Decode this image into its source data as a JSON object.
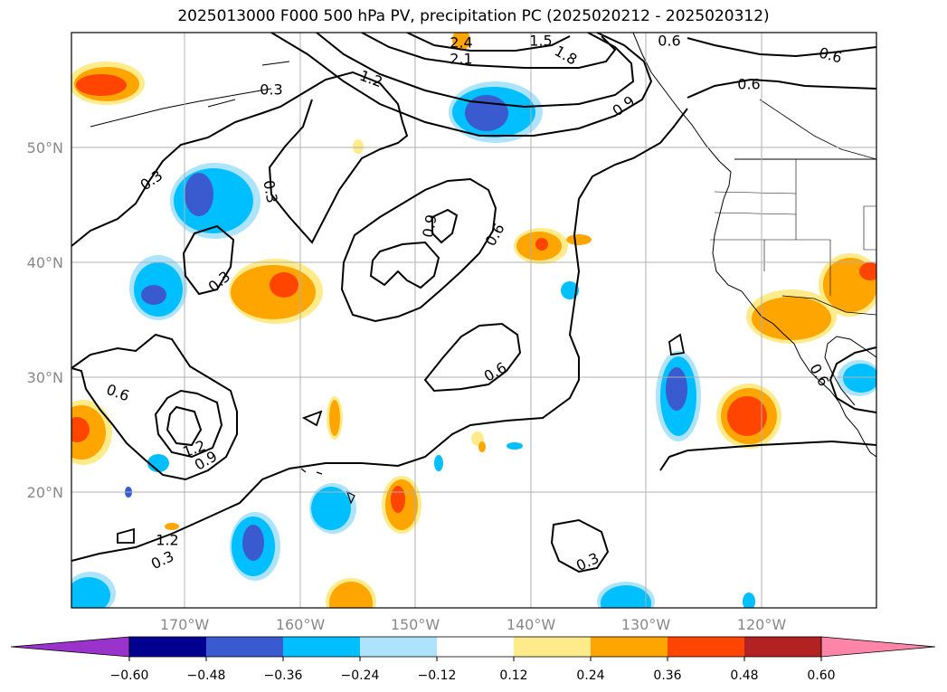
{
  "title": "2025013000 F000 500 hPa PV, precipitation PC (2025020212 - 2025020312)",
  "lat_ticks": [
    "50°N",
    "40°N",
    "30°N",
    "20°N"
  ],
  "lon_ticks": [
    "170°W",
    "160°W",
    "150°W",
    "140°W",
    "130°W",
    "120°W"
  ],
  "colorbar": {
    "colors": [
      "#9933cc",
      "#000090",
      "#3a5ad0",
      "#00bfff",
      "#aee4fb",
      "#ffffff",
      "#ffeb8a",
      "#ffa500",
      "#ff4500",
      "#b22222",
      "#ff85a8"
    ],
    "labels": [
      "−0.60",
      "−0.48",
      "−0.36",
      "−0.24",
      "−0.12",
      "0.12",
      "0.24",
      "0.36",
      "0.48",
      "0.60"
    ]
  },
  "contour_labels": [
    {
      "text": "0.3"
    },
    {
      "text": "0.3"
    },
    {
      "text": "0.3"
    },
    {
      "text": "0.3"
    },
    {
      "text": "0.3"
    },
    {
      "text": "0.3"
    },
    {
      "text": "0.6"
    },
    {
      "text": "0.6"
    },
    {
      "text": "0.6"
    },
    {
      "text": "0.6"
    },
    {
      "text": "0.6"
    },
    {
      "text": "0.6"
    },
    {
      "text": "0.6"
    },
    {
      "text": "0.9"
    },
    {
      "text": "0.9"
    },
    {
      "text": "0.9"
    },
    {
      "text": "1.2"
    },
    {
      "text": "1.2"
    },
    {
      "text": "1.2"
    },
    {
      "text": "1.5"
    },
    {
      "text": "1.8"
    },
    {
      "text": "2.1"
    },
    {
      "text": "2.4"
    }
  ]
}
